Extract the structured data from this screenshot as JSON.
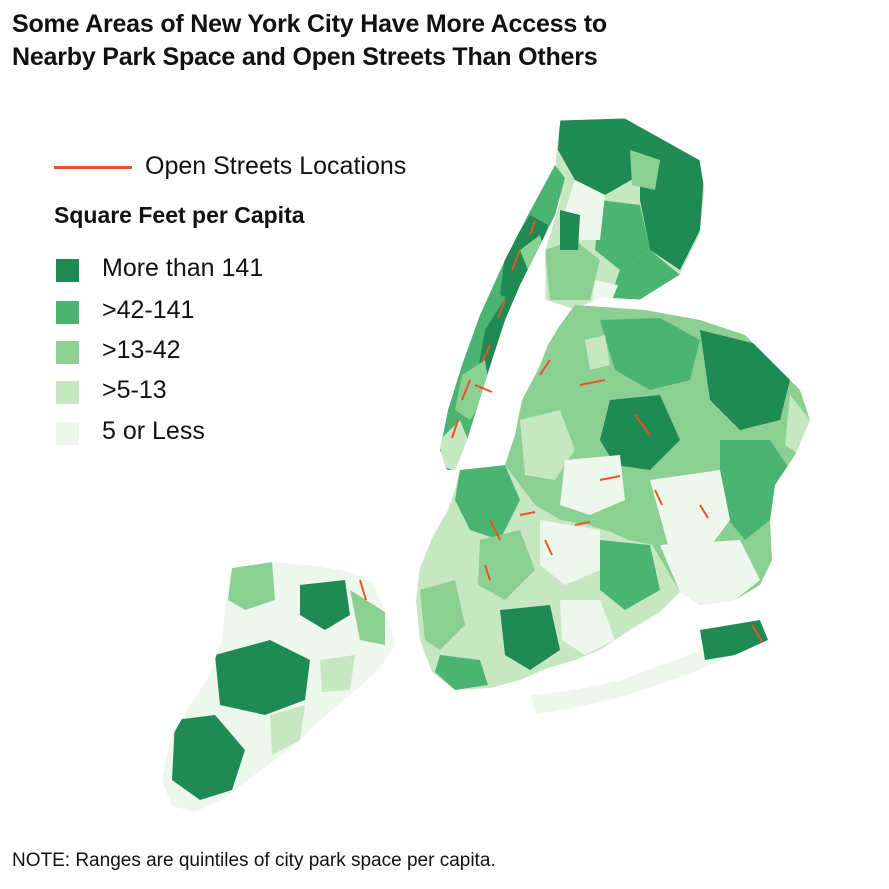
{
  "title": {
    "line1": "Some Areas of New York City Have More Access to",
    "line2": "Nearby Park Space and Open Streets Than Others"
  },
  "legend": {
    "open_streets_label": "Open Streets Locations",
    "open_streets_color": "#e8542a",
    "section_title": "Square Feet per Capita",
    "items": [
      {
        "label": "More than 141",
        "color": "#1f8a53"
      },
      {
        "label": ">42-141",
        "color": "#4cb472"
      },
      {
        "label": ">13-42",
        "color": "#8ccf92"
      },
      {
        "label": ">5-13",
        "color": "#c6e7c2"
      },
      {
        "label": "5 or Less",
        "color": "#eef7ec"
      }
    ]
  },
  "note": "NOTE: Ranges are quintiles of city park space per capita."
}
